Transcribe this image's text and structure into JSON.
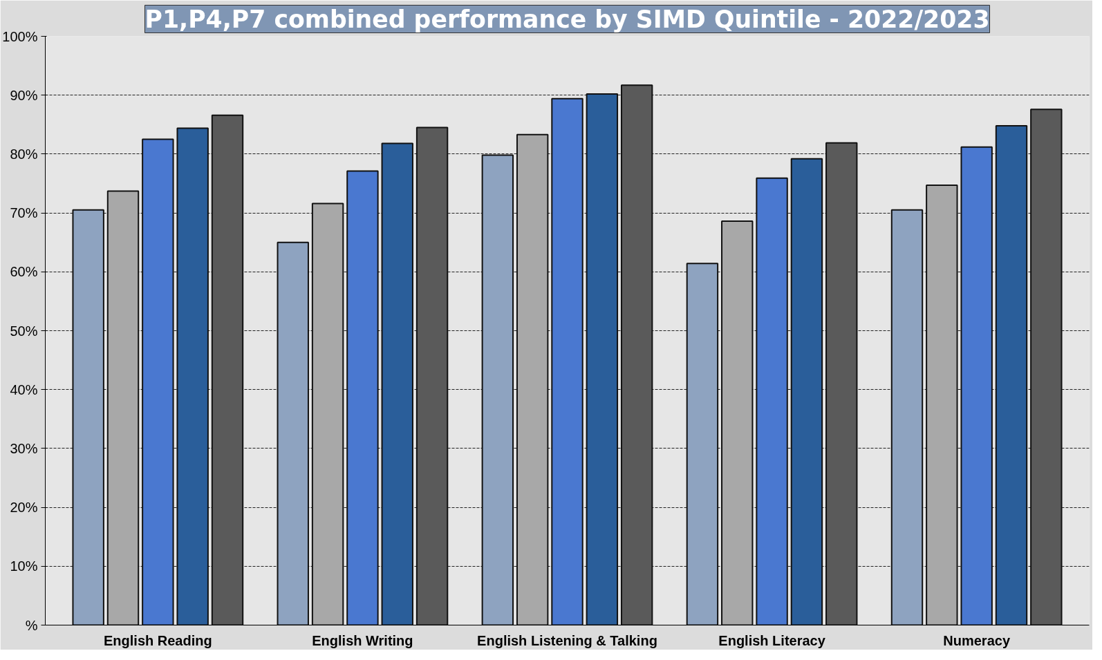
{
  "chart_data": {
    "type": "bar",
    "title": "P1,P4,P7 combined performance by SIMD Quintile - 2022/2023",
    "categories": [
      "English Reading",
      "English Writing",
      "English Listening & Talking",
      "English Literacy",
      "Numeracy"
    ],
    "series": [
      {
        "color": "#8ea3c0",
        "values": [
          70.5,
          65.0,
          79.8,
          61.4,
          70.5
        ]
      },
      {
        "color": "#a8a8a8",
        "values": [
          73.7,
          71.6,
          83.3,
          68.6,
          74.7
        ]
      },
      {
        "color": "#4a78d0",
        "values": [
          82.5,
          77.1,
          89.4,
          75.9,
          81.2
        ]
      },
      {
        "color": "#2a5e9a",
        "values": [
          84.4,
          81.8,
          90.2,
          79.2,
          84.8
        ]
      },
      {
        "color": "#5a5a5a",
        "values": [
          86.6,
          84.5,
          91.7,
          81.9,
          87.6
        ]
      }
    ],
    "ylim": [
      0,
      100
    ],
    "yticks": [
      {
        "value": 0,
        "label": "%"
      },
      {
        "value": 10,
        "label": "10%"
      },
      {
        "value": 20,
        "label": "20%"
      },
      {
        "value": 30,
        "label": "30%"
      },
      {
        "value": 40,
        "label": "40%"
      },
      {
        "value": 50,
        "label": "50%"
      },
      {
        "value": 60,
        "label": "60%"
      },
      {
        "value": 70,
        "label": "70%"
      },
      {
        "value": 80,
        "label": "80%"
      },
      {
        "value": 90,
        "label": "90%"
      },
      {
        "value": 100,
        "label": "100%"
      }
    ],
    "grid": "y"
  }
}
